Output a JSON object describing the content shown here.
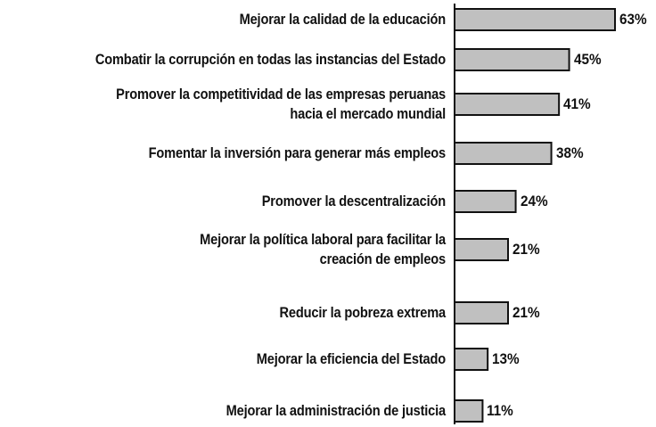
{
  "chart_data": {
    "type": "bar",
    "orientation": "horizontal",
    "categories": [
      "Mejorar la calidad de la educación",
      "Combatir la corrupción en todas las instancias del Estado",
      "Promover la competitividad de las empresas peruanas\nhacia el mercado mundial",
      "Fomentar la inversión para generar más empleos",
      "Promover la descentralización",
      "Mejorar la política laboral para facilitar la\ncreación de empleos",
      "Reducir la pobreza extrema",
      "Mejorar la eficiencia del Estado",
      "Mejorar la administración de justicia"
    ],
    "values": [
      63,
      45,
      41,
      38,
      24,
      21,
      21,
      13,
      11
    ],
    "value_labels": [
      "63%",
      "45%",
      "41%",
      "38%",
      "24%",
      "21%",
      "21%",
      "13%",
      "11%"
    ],
    "color": "#c0c0c0"
  }
}
